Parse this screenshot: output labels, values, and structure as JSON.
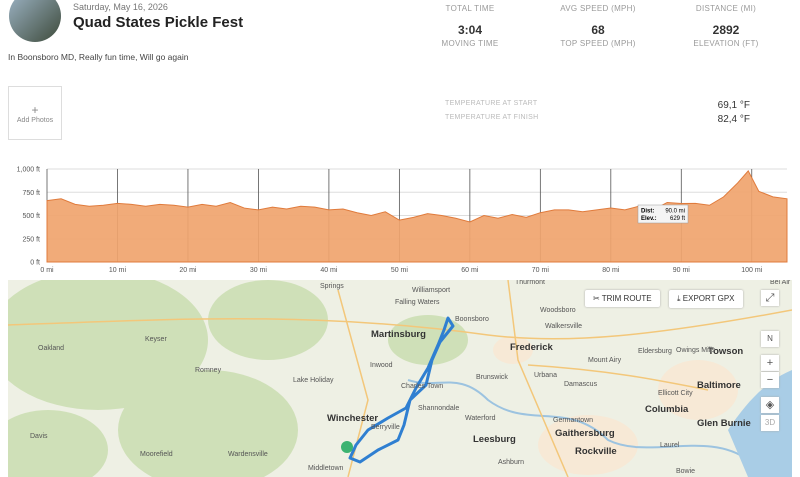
{
  "header": {
    "date": "Saturday, May 16, 2026",
    "title": "Quad States Pickle Fest",
    "description": "In Boonsboro MD, Really fun time, Will go again"
  },
  "stats": [
    {
      "label": "TOTAL TIME",
      "value": "3:04",
      "sublabel": "MOVING TIME"
    },
    {
      "label": "AVG SPEED (MPH)",
      "value": "68",
      "sublabel": "TOP SPEED (MPH)"
    },
    {
      "label": "DISTANCE (MI)",
      "value": "2892",
      "sublabel": "ELEVATION (FT)"
    }
  ],
  "photos": {
    "icon": "+",
    "label": "Add Photos"
  },
  "temperatures": [
    {
      "label": "TEMPERATURE AT START",
      "value": "69,1 °F"
    },
    {
      "label": "TEMPERATURE AT FINISH",
      "value": "82,4 °F"
    }
  ],
  "chart_data": {
    "type": "area",
    "x": [
      0,
      2,
      4,
      6,
      8,
      10,
      12,
      14,
      16,
      18,
      20,
      22,
      24,
      26,
      28,
      30,
      32,
      34,
      36,
      38,
      40,
      42,
      44,
      46,
      48,
      50,
      52,
      54,
      56,
      58,
      60,
      62,
      64,
      66,
      68,
      70,
      72,
      74,
      76,
      78,
      80,
      82,
      84,
      86,
      88,
      90,
      92,
      94,
      96,
      98,
      99.5,
      101,
      103,
      105
    ],
    "series": [
      {
        "color": "#f0a46e",
        "values": [
          660,
          680,
          620,
          600,
          610,
          630,
          620,
          600,
          620,
          610,
          590,
          620,
          600,
          640,
          580,
          560,
          590,
          570,
          600,
          590,
          560,
          570,
          530,
          500,
          540,
          450,
          480,
          520,
          500,
          470,
          430,
          500,
          470,
          510,
          480,
          530,
          560,
          560,
          540,
          560,
          580,
          560,
          600,
          560,
          640,
          629,
          630,
          610,
          700,
          850,
          980,
          760,
          700,
          680
        ]
      }
    ],
    "xlim": [
      0,
      105
    ],
    "xticks": [
      {
        "value": 0,
        "label": "0 mi"
      },
      {
        "value": 10,
        "label": "10 mi"
      },
      {
        "value": 20,
        "label": "20 mi"
      },
      {
        "value": 30,
        "label": "30 mi"
      },
      {
        "value": 40,
        "label": "40 mi"
      },
      {
        "value": 50,
        "label": "50 mi"
      },
      {
        "value": 60,
        "label": "60 mi"
      },
      {
        "value": 70,
        "label": "70 mi"
      },
      {
        "value": 80,
        "label": "80 mi"
      },
      {
        "value": 90,
        "label": "90 mi"
      },
      {
        "value": 100,
        "label": "100 mi"
      }
    ],
    "ylim": [
      0,
      1000
    ],
    "yticks": [
      {
        "value": 0,
        "label": "0 ft"
      },
      {
        "value": 250,
        "label": "250 ft"
      },
      {
        "value": 500,
        "label": "500 ft"
      },
      {
        "value": 750,
        "label": "750 ft"
      },
      {
        "value": 1000,
        "label": "1,000 ft"
      }
    ],
    "grid": true,
    "tooltip": {
      "dist_label": "Dist:",
      "dist": "90.0 mi",
      "elev_label": "Elev.:",
      "elev": "629 ft"
    }
  },
  "map": {
    "buttons": [
      "TRIM ROUTE",
      "EXPORT GPX"
    ],
    "controls": [
      "N",
      "+",
      "−",
      "3D"
    ],
    "places": [
      "Martinsburg",
      "Frederick",
      "Towson",
      "Baltimore",
      "Columbia",
      "Glen Burnie",
      "Winchester",
      "Leesburg",
      "Gaithersburg",
      "Rockville",
      "Springs",
      "Falling Waters",
      "Williamsport",
      "Boonsboro",
      "Thurmont",
      "Woodsboro",
      "Walkersville",
      "Romney",
      "Oakland",
      "Keyser",
      "Lake Holiday",
      "Inwood",
      "Charles Town",
      "Brunswick",
      "Urbana",
      "Damascus",
      "Waterford",
      "Berryville",
      "Moorefield",
      "Bel Air",
      "Laurel",
      "Bowie",
      "Middletown",
      "Wardensville",
      "Davis",
      "Mount Airy",
      "Eldersburg",
      "Owings Mills",
      "Ellicott City",
      "Shannondale",
      "Germantown",
      "Ashburn"
    ]
  }
}
